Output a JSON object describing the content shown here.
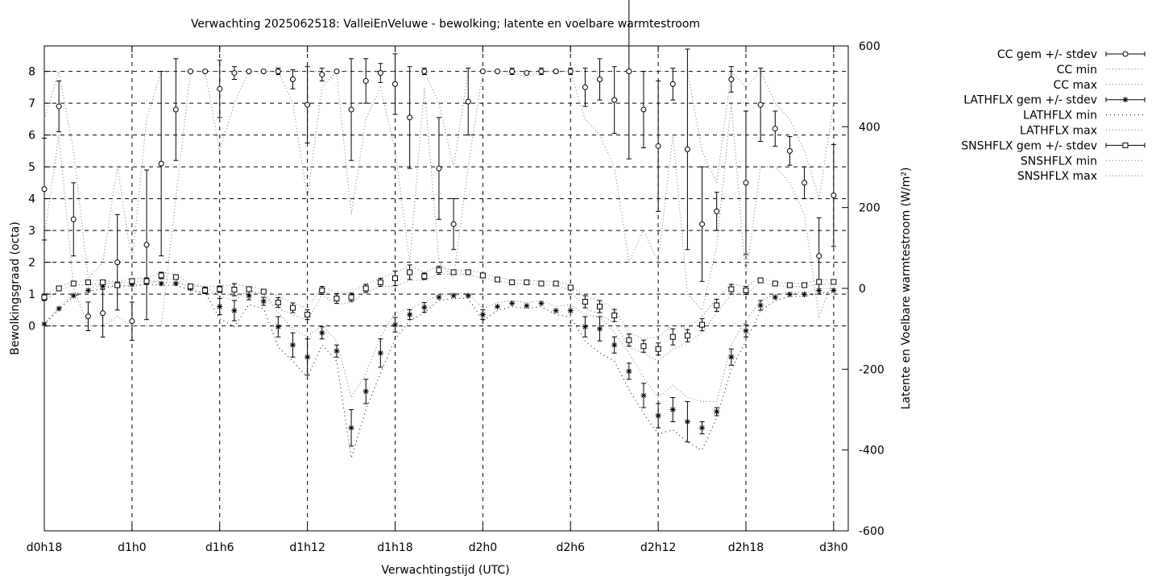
{
  "chart_data": {
    "type": "line",
    "title": "Verwachting 2025062518: ValleiEnVeluwe - bewolking; latente en voelbare warmtestroom",
    "xlabel": "Verwachtingstijd (UTC)",
    "ylabel": "Bewolkingsgraad (octa)",
    "y2label": "Latente en Voelbare warmtestroom (W/m²)",
    "xlim": [
      18,
      73
    ],
    "ylim": [
      -6.44,
      8.8
    ],
    "y2lim": [
      -600,
      600
    ],
    "grid": true,
    "legend_position": "outside-right-top",
    "x_ticks": [
      {
        "value": 18,
        "label": "d0h18"
      },
      {
        "value": 24,
        "label": "d1h0"
      },
      {
        "value": 30,
        "label": "d1h6"
      },
      {
        "value": 36,
        "label": "d1h12"
      },
      {
        "value": 42,
        "label": "d1h18"
      },
      {
        "value": 48,
        "label": "d2h0"
      },
      {
        "value": 54,
        "label": "d2h6"
      },
      {
        "value": 60,
        "label": "d2h12"
      },
      {
        "value": 66,
        "label": "d2h18"
      },
      {
        "value": 72,
        "label": "d3h0"
      }
    ],
    "y_ticks": [
      0,
      1,
      2,
      3,
      4,
      5,
      6,
      7,
      8
    ],
    "y2_ticks": [
      -600,
      -400,
      -200,
      0,
      200,
      400,
      600
    ],
    "x": [
      18,
      19,
      20,
      21,
      22,
      23,
      24,
      25,
      26,
      27,
      28,
      29,
      30,
      31,
      32,
      33,
      34,
      35,
      36,
      37,
      38,
      39,
      40,
      41,
      42,
      43,
      44,
      45,
      46,
      47,
      48,
      49,
      50,
      51,
      52,
      53,
      54,
      55,
      56,
      57,
      58,
      59,
      60,
      61,
      62,
      63,
      64,
      65,
      66,
      67,
      68,
      69,
      70,
      71,
      72
    ],
    "series": [
      {
        "name": "CC gem +/- stdev",
        "axis": "y",
        "marker": "circle",
        "mean": [
          4.3,
          6.9,
          3.35,
          0.3,
          0.4,
          2,
          0.15,
          2.55,
          5.1,
          6.8,
          8,
          8,
          7.45,
          7.95,
          8,
          8,
          8,
          7.75,
          6.95,
          7.9,
          8,
          6.8,
          7.7,
          7.95,
          7.6,
          6.55,
          8,
          4.95,
          3.2,
          7.05,
          8,
          8,
          8,
          7.95,
          8,
          8,
          8,
          7.5,
          7.75,
          7.1,
          8,
          6.8,
          5.65,
          7.6,
          5.55,
          3.2,
          3.6,
          7.75,
          4.5,
          6.95,
          6.2,
          5.5,
          4.5,
          2.2,
          4.1
        ],
        "stdev": [
          1.6,
          0.8,
          1.15,
          0.45,
          0.75,
          1.5,
          0.6,
          2.35,
          2.9,
          1.6,
          0,
          0,
          0.9,
          0.2,
          0,
          0,
          0.1,
          0.3,
          1.2,
          0.2,
          0,
          1.6,
          0.7,
          0.3,
          0.95,
          1.6,
          0.1,
          1.6,
          0.8,
          1.05,
          0,
          0,
          0.1,
          0.05,
          0.1,
          0.05,
          0.1,
          0.6,
          0.65,
          1.05,
          2.75,
          1.2,
          2.05,
          0.5,
          3.15,
          1.8,
          0.6,
          0.4,
          2.25,
          1.15,
          0.55,
          0.45,
          0.5,
          1.2,
          1.6
        ]
      },
      {
        "name": "CC min",
        "axis": "y",
        "values": [
          2.8,
          6,
          1.2,
          0,
          0,
          0.3,
          0,
          0,
          0,
          4,
          8,
          8,
          5.5,
          7,
          8,
          8,
          8,
          7,
          4,
          7.5,
          8,
          3.5,
          6.5,
          7.5,
          5.5,
          2,
          7.5,
          2,
          1.5,
          5,
          8,
          8,
          8,
          7.8,
          8,
          8,
          8,
          6.5,
          6,
          5,
          2,
          3,
          2,
          6,
          1,
          0.5,
          2.5,
          7,
          1.5,
          5,
          5,
          4.5,
          3.5,
          0.3,
          1.5
        ]
      },
      {
        "name": "CC max",
        "axis": "y",
        "values": [
          6.5,
          8,
          5.5,
          1.5,
          2,
          5,
          2,
          6.5,
          8,
          8,
          8,
          8,
          8,
          8,
          8,
          8,
          8,
          8,
          8,
          8,
          8,
          8,
          8,
          8,
          8,
          8,
          8,
          7,
          5,
          8,
          8,
          8,
          8,
          8,
          8,
          8,
          8,
          8,
          8,
          8,
          8,
          8,
          8,
          8,
          8,
          5.5,
          4.5,
          8,
          7.5,
          8,
          7,
          6.5,
          5.5,
          4,
          7
        ]
      },
      {
        "name": "LATHFLX gem +/- stdev",
        "axis": "y2",
        "marker": "star",
        "mean": [
          -88,
          -50,
          -18,
          -5,
          5,
          12,
          10,
          15,
          12,
          12,
          0,
          -2,
          -45,
          -55,
          -18,
          -32,
          -95,
          -140,
          -170,
          -110,
          -155,
          -345,
          -255,
          -160,
          -90,
          -65,
          -47,
          -22,
          -18,
          -18,
          -65,
          -45,
          -37,
          -43,
          -37,
          -55,
          -55,
          -95,
          -100,
          -140,
          -205,
          -265,
          -315,
          -300,
          -330,
          -345,
          -305,
          -170,
          -105,
          -42,
          -22,
          -15,
          -15,
          -5,
          -5
        ],
        "stdev": [
          0,
          0,
          0,
          0,
          0,
          0,
          0,
          0,
          0,
          0,
          0,
          0,
          20,
          25,
          10,
          10,
          25,
          30,
          45,
          15,
          15,
          45,
          30,
          35,
          18,
          12,
          12,
          0,
          0,
          0,
          12,
          0,
          0,
          0,
          0,
          0,
          0,
          25,
          30,
          20,
          20,
          30,
          30,
          30,
          50,
          15,
          10,
          20,
          15,
          12,
          0,
          0,
          0,
          0,
          0
        ]
      },
      {
        "name": "LATHFLX min",
        "axis": "y2",
        "values": [
          -90,
          -52,
          -20,
          -8,
          0,
          8,
          5,
          10,
          8,
          8,
          -5,
          -10,
          -75,
          -95,
          -40,
          -50,
          -145,
          -180,
          -220,
          -140,
          -180,
          -420,
          -300,
          -210,
          -125,
          -80,
          -60,
          -30,
          -25,
          -25,
          -80,
          -55,
          -45,
          -50,
          -45,
          -65,
          -70,
          -130,
          -160,
          -180,
          -250,
          -310,
          -360,
          -350,
          -380,
          -400,
          -320,
          -200,
          -130,
          -55,
          -30,
          -20,
          -20,
          -12,
          -10
        ]
      },
      {
        "name": "LATHFLX max",
        "axis": "y2",
        "values": [
          -85,
          -48,
          -15,
          -2,
          10,
          15,
          15,
          20,
          15,
          15,
          5,
          5,
          -20,
          -30,
          -5,
          -15,
          -60,
          -100,
          -120,
          -90,
          -130,
          -270,
          -210,
          -120,
          -60,
          -50,
          -35,
          -15,
          -12,
          -12,
          -50,
          -35,
          -30,
          -35,
          -30,
          -45,
          -40,
          -65,
          -70,
          -110,
          -160,
          -220,
          -270,
          -240,
          -270,
          -280,
          -280,
          -140,
          -80,
          -30,
          -15,
          -10,
          -10,
          0,
          0
        ]
      },
      {
        "name": "SNSHFLX gem +/- stdev",
        "axis": "y2",
        "marker": "square",
        "mean": [
          -22,
          0,
          12,
          15,
          15,
          8,
          18,
          18,
          32,
          28,
          5,
          -5,
          -2,
          -3,
          -2,
          -8,
          -35,
          -48,
          -65,
          -5,
          -25,
          -22,
          0,
          15,
          25,
          40,
          30,
          45,
          40,
          40,
          32,
          22,
          15,
          15,
          12,
          12,
          2,
          -33,
          -45,
          -67,
          -128,
          -143,
          -150,
          -120,
          -117,
          -90,
          -42,
          -2,
          -5,
          20,
          12,
          8,
          8,
          16,
          16
        ],
        "stdev": [
          8,
          0,
          0,
          0,
          0,
          5,
          5,
          8,
          8,
          5,
          5,
          8,
          8,
          15,
          5,
          5,
          12,
          12,
          12,
          10,
          12,
          10,
          10,
          10,
          18,
          18,
          8,
          10,
          5,
          5,
          5,
          0,
          0,
          0,
          0,
          0,
          5,
          15,
          15,
          15,
          15,
          15,
          15,
          20,
          15,
          15,
          15,
          12,
          10,
          5,
          5,
          5,
          5,
          5,
          5
        ]
      },
      {
        "name": "SNSHFLX min",
        "axis": "y2",
        "values": [
          -30,
          -5,
          8,
          10,
          10,
          0,
          10,
          10,
          22,
          22,
          0,
          -15,
          -10,
          -20,
          -8,
          -15,
          -50,
          -65,
          -80,
          -15,
          -40,
          -35,
          -10,
          5,
          5,
          20,
          20,
          35,
          35,
          35,
          25,
          18,
          12,
          12,
          8,
          8,
          -5,
          -50,
          -65,
          -85,
          -145,
          -160,
          -180,
          -150,
          -135,
          -110,
          -60,
          -15,
          -15,
          15,
          8,
          5,
          5,
          10,
          10
        ]
      },
      {
        "name": "SNSHFLX max",
        "axis": "y2",
        "values": [
          -15,
          5,
          15,
          20,
          20,
          15,
          25,
          25,
          40,
          35,
          10,
          5,
          5,
          10,
          5,
          -2,
          -20,
          -35,
          -50,
          5,
          -10,
          -10,
          10,
          25,
          40,
          55,
          40,
          55,
          45,
          45,
          38,
          28,
          20,
          20,
          18,
          18,
          8,
          -20,
          -30,
          -50,
          -110,
          -125,
          -120,
          -90,
          -100,
          -70,
          -25,
          10,
          5,
          25,
          16,
          12,
          12,
          22,
          22
        ]
      }
    ]
  }
}
